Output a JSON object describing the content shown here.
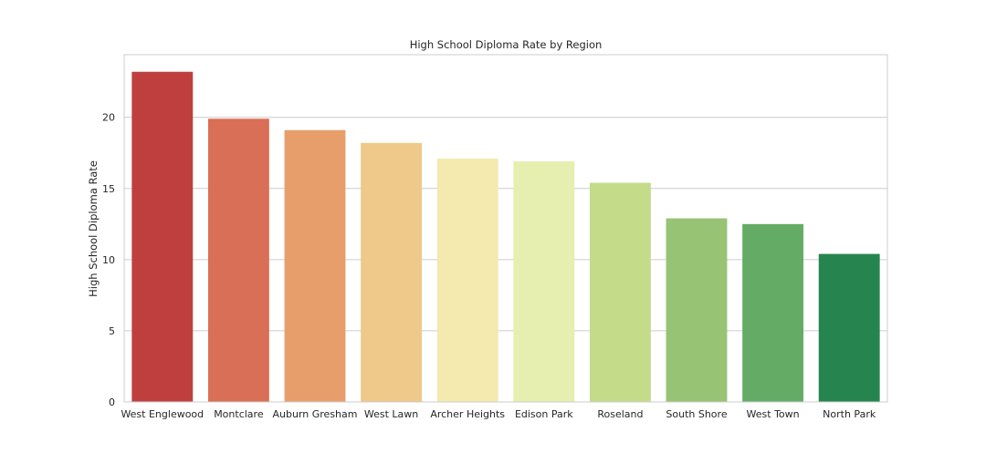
{
  "chart_data": {
    "type": "bar",
    "title": "High School Diploma Rate by Region",
    "xlabel": "",
    "ylabel": "High School Diploma Rate",
    "ylim": [
      0,
      24.4
    ],
    "yticks": [
      0,
      5,
      10,
      15,
      20
    ],
    "grid": true,
    "categories": [
      "West Englewood",
      "Montclare",
      "Auburn Gresham",
      "West Lawn",
      "Archer Heights",
      "Edison Park",
      "Roseland",
      "South Shore",
      "West Town",
      "North Park"
    ],
    "values": [
      23.2,
      19.9,
      19.1,
      18.2,
      17.1,
      16.9,
      15.4,
      12.9,
      12.5,
      10.4
    ],
    "colors": [
      "#bf3f3f",
      "#d96f56",
      "#e89e6b",
      "#eec98a",
      "#f4e9ae",
      "#e6eeb0",
      "#c4db8a",
      "#96c374",
      "#64ab66",
      "#26854f"
    ]
  }
}
